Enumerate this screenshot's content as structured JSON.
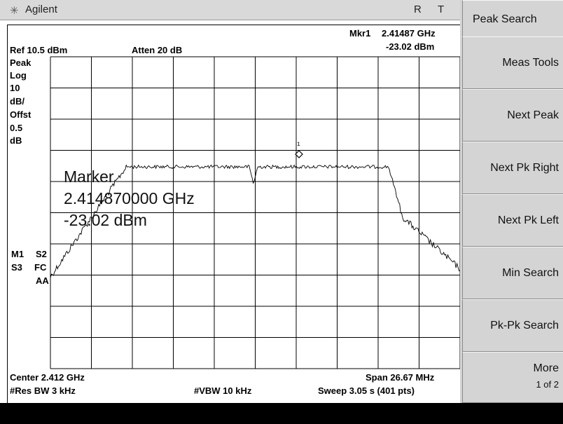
{
  "title_bar": {
    "brand": "Agilent",
    "brand_icon": "agilent-spark-icon",
    "flags": [
      "R",
      "T"
    ]
  },
  "marker_readout": {
    "label": "Mkr1",
    "frequency": "2.41487 GHz",
    "amplitude": "-23.02 dBm"
  },
  "settings": {
    "ref_level": "Ref 10.5 dBm",
    "attenuation": "Atten 20 dB"
  },
  "scale_annotations": [
    "Peak",
    "Log",
    "10",
    "dB/",
    "Offst",
    "0.5",
    "dB"
  ],
  "trace_flags": [
    "M1",
    "S2",
    "S3",
    "FC",
    "AA"
  ],
  "marker_overlay": {
    "title": "Marker",
    "frequency": "2.414870000 GHz",
    "amplitude": "-23.02 dBm"
  },
  "marker_tag": "1",
  "footer": {
    "center": "Center 2.412 GHz",
    "span": "Span 26.67 MHz",
    "res_bw": "#Res BW 3 kHz",
    "vbw": "#VBW 10 kHz",
    "sweep": "Sweep 3.05 s (401 pts)"
  },
  "softkeys": [
    {
      "label": "Peak Search"
    },
    {
      "label": "Meas Tools"
    },
    {
      "label": "Next Peak"
    },
    {
      "label": "Next Pk Right"
    },
    {
      "label": "Next Pk Left"
    },
    {
      "label": "Min Search"
    },
    {
      "label": "Pk-Pk Search"
    },
    {
      "label": "More",
      "sub": "1 of 2"
    }
  ],
  "colors": {
    "trace": "#000000",
    "grid": "#000000",
    "screen_bg": "#ffffff",
    "softkey_bg": "#d4d4d4"
  }
}
